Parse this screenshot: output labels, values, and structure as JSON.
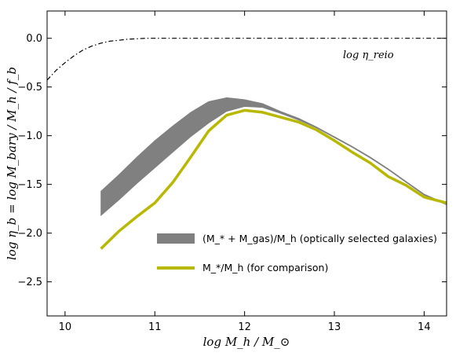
{
  "chart_data": {
    "type": "line",
    "xlabel": "log M_h / M_⊙",
    "ylabel": "log η_b =  log M_bary / M_h / f_b",
    "xlim": [
      9.8,
      14.25
    ],
    "ylim": [
      -2.85,
      0.28
    ],
    "x_ticks": [
      10,
      11,
      12,
      13,
      14
    ],
    "x_tick_labels": [
      "10",
      "11",
      "12",
      "13",
      "14"
    ],
    "y_ticks": [
      0.0,
      -0.5,
      -1.0,
      -1.5,
      -2.0,
      -2.5
    ],
    "y_tick_labels": [
      "0.0",
      "−0.5",
      "−1.0",
      "−1.5",
      "−2.0",
      "−2.5"
    ],
    "grid": false,
    "legend_position": "lower-center",
    "annotation": "log η_reio",
    "series": [
      {
        "name": "(M_* + M_gas)/M_h  (optically selected galaxies)",
        "kind": "band",
        "color": "#808080",
        "x": [
          10.4,
          10.6,
          10.8,
          11.0,
          11.2,
          11.4,
          11.6,
          11.8,
          12.0,
          12.2,
          12.4,
          12.6,
          12.8,
          13.0,
          13.2,
          13.4,
          13.6,
          13.8,
          14.0,
          14.25
        ],
        "upper": [
          -1.57,
          -1.4,
          -1.22,
          -1.05,
          -0.9,
          -0.76,
          -0.65,
          -0.61,
          -0.63,
          -0.67,
          -0.75,
          -0.82,
          -0.91,
          -1.01,
          -1.11,
          -1.22,
          -1.34,
          -1.47,
          -1.6,
          -1.7
        ],
        "lower": [
          -1.82,
          -1.66,
          -1.49,
          -1.33,
          -1.17,
          -1.01,
          -0.87,
          -0.75,
          -0.7,
          -0.71,
          -0.77,
          -0.84,
          -0.92,
          -1.02,
          -1.12,
          -1.23,
          -1.35,
          -1.48,
          -1.61,
          -1.71
        ]
      },
      {
        "name": "M_*/M_h  (for comparison)",
        "kind": "line",
        "color": "#b8b800",
        "x": [
          10.4,
          10.6,
          10.8,
          11.0,
          11.2,
          11.4,
          11.6,
          11.8,
          12.0,
          12.2,
          12.4,
          12.6,
          12.8,
          13.0,
          13.2,
          13.4,
          13.6,
          13.8,
          14.0,
          14.25
        ],
        "y": [
          -2.16,
          -1.98,
          -1.83,
          -1.69,
          -1.48,
          -1.22,
          -0.95,
          -0.79,
          -0.74,
          -0.76,
          -0.81,
          -0.86,
          -0.94,
          -1.05,
          -1.17,
          -1.28,
          -1.42,
          -1.51,
          -1.63,
          -1.69
        ]
      },
      {
        "name": "log η_reio",
        "kind": "dashdot",
        "color": "#000000",
        "x": [
          9.8,
          9.9,
          10.0,
          10.1,
          10.2,
          10.3,
          10.4,
          10.5,
          10.6,
          10.7,
          10.8,
          10.9,
          11.0,
          11.2,
          11.5,
          12.0,
          13.0,
          14.25
        ],
        "y": [
          -0.43,
          -0.33,
          -0.25,
          -0.18,
          -0.12,
          -0.08,
          -0.05,
          -0.03,
          -0.02,
          -0.01,
          -0.005,
          0.0,
          0.0,
          0.0,
          0.0,
          0.0,
          0.0,
          0.0
        ]
      }
    ]
  }
}
